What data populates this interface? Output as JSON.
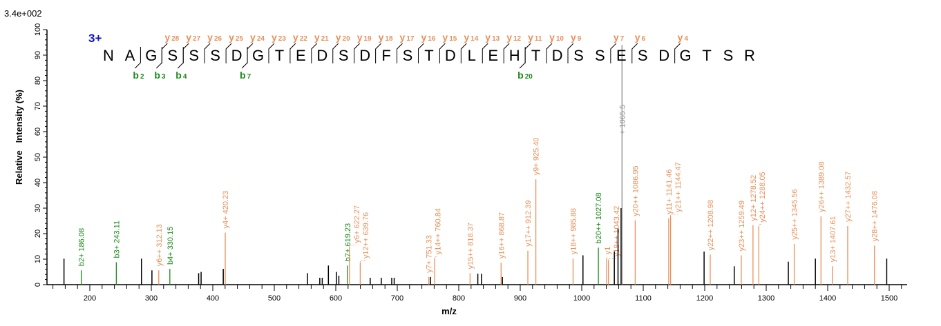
{
  "chart_data": {
    "type": "bar",
    "scale_label": "3.4e+002",
    "charge_label": "3+",
    "xlabel": "m/z",
    "ylabel": "Relative   Intensity (%)",
    "xlim": [
      130,
      1535
    ],
    "ylim": [
      0,
      100
    ],
    "x_ticks": [
      200,
      300,
      400,
      500,
      600,
      700,
      800,
      900,
      1000,
      1100,
      1200,
      1300,
      1400,
      1500
    ],
    "y_ticks": [
      0,
      10,
      20,
      30,
      40,
      50,
      60,
      70,
      80,
      90,
      100
    ],
    "colors": {
      "b": "#1a8a1a",
      "y": "#e8905a",
      "unassigned": "#000000",
      "precursor": "#888888",
      "charge": "#1010c0"
    },
    "sequence": [
      "N",
      "A",
      "G",
      "S",
      "S",
      "S",
      "D",
      "G",
      "T",
      "E",
      "D",
      "S",
      "D",
      "F",
      "S",
      "T",
      "D",
      "L",
      "E",
      "H",
      "T",
      "D",
      "S",
      "S",
      "E",
      "S",
      "D",
      "G",
      "T",
      "S",
      "R"
    ],
    "y_ions": [
      {
        "label": "y",
        "n": "28",
        "after": 3
      },
      {
        "label": "y",
        "n": "27",
        "after": 4
      },
      {
        "label": "y",
        "n": "26",
        "after": 5
      },
      {
        "label": "y",
        "n": "25",
        "after": 6
      },
      {
        "label": "y",
        "n": "24",
        "after": 7
      },
      {
        "label": "y",
        "n": "23",
        "after": 8
      },
      {
        "label": "y",
        "n": "22",
        "after": 9
      },
      {
        "label": "y",
        "n": "21",
        "after": 10
      },
      {
        "label": "y",
        "n": "20",
        "after": 11
      },
      {
        "label": "y",
        "n": "19",
        "after": 12
      },
      {
        "label": "y",
        "n": "18",
        "after": 13
      },
      {
        "label": "y",
        "n": "17",
        "after": 14
      },
      {
        "label": "y",
        "n": "16",
        "after": 15
      },
      {
        "label": "y",
        "n": "15",
        "after": 16
      },
      {
        "label": "y",
        "n": "14",
        "after": 17
      },
      {
        "label": "y",
        "n": "13",
        "after": 18
      },
      {
        "label": "y",
        "n": "12",
        "after": 19
      },
      {
        "label": "y",
        "n": "11",
        "after": 20
      },
      {
        "label": "y",
        "n": "10",
        "after": 21
      },
      {
        "label": "y",
        "n": "9",
        "after": 22
      },
      {
        "label": "y",
        "n": "7",
        "after": 24
      },
      {
        "label": "y",
        "n": "6",
        "after": 25
      },
      {
        "label": "y",
        "n": "4",
        "after": 27
      }
    ],
    "b_ions": [
      {
        "label": "b",
        "n": "2",
        "after": 2
      },
      {
        "label": "b",
        "n": "3",
        "after": 3
      },
      {
        "label": "b",
        "n": "4",
        "after": 4
      },
      {
        "label": "b",
        "n": "7",
        "after": 7
      },
      {
        "label": "b",
        "n": "20",
        "after": 20
      }
    ],
    "peaks": [
      {
        "mz": 158,
        "i": 10.2,
        "type": "unassigned"
      },
      {
        "mz": 186.08,
        "i": 5.6,
        "type": "b",
        "label": "b2+ 186.08"
      },
      {
        "mz": 243.11,
        "i": 8.8,
        "type": "b",
        "label": "b3+ 243.11"
      },
      {
        "mz": 284,
        "i": 10.2,
        "type": "unassigned"
      },
      {
        "mz": 301,
        "i": 5.6,
        "type": "unassigned"
      },
      {
        "mz": 312.13,
        "i": 5.6,
        "type": "y",
        "label": "y6++ 312.13"
      },
      {
        "mz": 330.15,
        "i": 6.2,
        "type": "b",
        "label": "b4+ 330.15"
      },
      {
        "mz": 377,
        "i": 4.5,
        "type": "unassigned"
      },
      {
        "mz": 381,
        "i": 5.0,
        "type": "unassigned"
      },
      {
        "mz": 417,
        "i": 6.2,
        "type": "unassigned"
      },
      {
        "mz": 420.23,
        "i": 20.4,
        "type": "y",
        "label": "y4+ 420.23"
      },
      {
        "mz": 554,
        "i": 4.5,
        "type": "unassigned"
      },
      {
        "mz": 574,
        "i": 2.7,
        "type": "unassigned"
      },
      {
        "mz": 578,
        "i": 2.7,
        "type": "unassigned"
      },
      {
        "mz": 588,
        "i": 7.5,
        "type": "unassigned"
      },
      {
        "mz": 601,
        "i": 5.0,
        "type": "unassigned"
      },
      {
        "mz": 605,
        "i": 3.5,
        "type": "unassigned"
      },
      {
        "mz": 619.23,
        "i": 7.5,
        "type": "b",
        "label": "b7+ 619.23"
      },
      {
        "mz": 622.27,
        "i": 14.7,
        "type": "y",
        "label": "y6+ 622.27"
      },
      {
        "mz": 639.76,
        "i": 8.6,
        "type": "y",
        "label": "y12++ 639.76"
      },
      {
        "mz": 656,
        "i": 2.7,
        "type": "unassigned"
      },
      {
        "mz": 674,
        "i": 2.7,
        "type": "unassigned"
      },
      {
        "mz": 691,
        "i": 2.7,
        "type": "unassigned"
      },
      {
        "mz": 695,
        "i": 2.7,
        "type": "unassigned"
      },
      {
        "mz": 751.33,
        "i": 3.0,
        "type": "y",
        "label": "y7+ 751.33"
      },
      {
        "mz": 754,
        "i": 3.0,
        "type": "unassigned"
      },
      {
        "mz": 760.84,
        "i": 10.2,
        "type": "y",
        "label": "y14++ 760.84"
      },
      {
        "mz": 818.37,
        "i": 4.5,
        "type": "y",
        "label": "y15++ 818.37"
      },
      {
        "mz": 831,
        "i": 4.3,
        "type": "unassigned"
      },
      {
        "mz": 837,
        "i": 4.3,
        "type": "unassigned"
      },
      {
        "mz": 868.87,
        "i": 8.6,
        "type": "y",
        "label": "y16++ 868.87"
      },
      {
        "mz": 871,
        "i": 3.0,
        "type": "unassigned"
      },
      {
        "mz": 912.39,
        "i": 13.3,
        "type": "y",
        "label": "y17++ 912.39"
      },
      {
        "mz": 925.4,
        "i": 41.3,
        "type": "y",
        "label": "y9+ 925.40"
      },
      {
        "mz": 985.88,
        "i": 10.2,
        "type": "y",
        "label": "y18++ 985.88"
      },
      {
        "mz": 1002,
        "i": 11.5,
        "type": "unassigned"
      },
      {
        "mz": 1027.08,
        "i": 14.5,
        "type": "b",
        "label": "b20++ 1027.08"
      },
      {
        "mz": 1040.5,
        "i": 10.2,
        "type": "y",
        "label": "y1"
      },
      {
        "mz": 1043.42,
        "i": 9.4,
        "type": "y",
        "label": "y19++ 1043.42"
      },
      {
        "mz": 1053,
        "i": 13.0,
        "type": "unassigned"
      },
      {
        "mz": 1059,
        "i": 22.0,
        "type": "unassigned"
      },
      {
        "mz": 1064,
        "i": 30.0,
        "type": "unassigned"
      },
      {
        "mz": 1065.5,
        "i": 94.0,
        "type": "precursor",
        "label": "+ 1065.5"
      },
      {
        "mz": 1086.95,
        "i": 25.2,
        "type": "y",
        "label": "y20++ 1086.95"
      },
      {
        "mz": 1141.46,
        "i": 26.0,
        "type": "y",
        "label": "y11+ 1141.46"
      },
      {
        "mz": 1144.47,
        "i": 26.8,
        "type": "y",
        "label": "y21++ 1144.47"
      },
      {
        "mz": 1199,
        "i": 13.0,
        "type": "unassigned"
      },
      {
        "mz": 1208.98,
        "i": 11.8,
        "type": "y",
        "label": "y22++ 1208.98"
      },
      {
        "mz": 1248,
        "i": 7.2,
        "type": "unassigned"
      },
      {
        "mz": 1259.49,
        "i": 11.5,
        "type": "y",
        "label": "y23++ 1259.49"
      },
      {
        "mz": 1278.52,
        "i": 23.3,
        "type": "y",
        "label": "y12+ 1278.52"
      },
      {
        "mz": 1288.05,
        "i": 22.8,
        "type": "y",
        "label": "y24++ 1288.05"
      },
      {
        "mz": 1336,
        "i": 9.0,
        "type": "unassigned"
      },
      {
        "mz": 1345.56,
        "i": 16.0,
        "type": "y",
        "label": "y25++ 1345.56"
      },
      {
        "mz": 1380,
        "i": 10.2,
        "type": "unassigned"
      },
      {
        "mz": 1389.08,
        "i": 26.8,
        "type": "y",
        "label": "y26++ 1389.08"
      },
      {
        "mz": 1407.61,
        "i": 7.2,
        "type": "y",
        "label": "y13+ 1407.61"
      },
      {
        "mz": 1432.57,
        "i": 23.0,
        "type": "y",
        "label": "y27++ 1432.57"
      },
      {
        "mz": 1476.08,
        "i": 15.3,
        "type": "y",
        "label": "y28++ 1476.08"
      },
      {
        "mz": 1496,
        "i": 10.2,
        "type": "unassigned"
      }
    ]
  }
}
